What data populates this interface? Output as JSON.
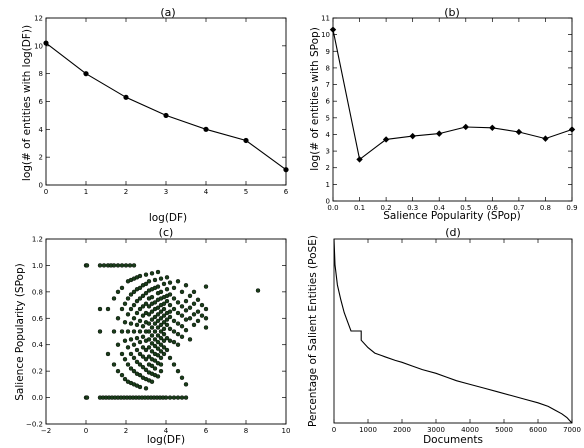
{
  "chart_data": [
    {
      "panel": "a",
      "type": "line",
      "title": "(a)",
      "xlabel": "log(DF)",
      "ylabel": "log(# of entities with log(DF))",
      "xlim": [
        0,
        6
      ],
      "ylim": [
        0,
        12
      ],
      "xticks": [
        "0",
        "1",
        "2",
        "3",
        "4",
        "5",
        "6"
      ],
      "yticks": [
        "0",
        "2",
        "4",
        "6",
        "8",
        "10",
        "12"
      ],
      "marker": "circle",
      "series": [
        {
          "x": [
            0,
            1,
            2,
            3,
            4,
            5,
            6
          ],
          "y": [
            10.2,
            8.0,
            6.3,
            5.0,
            4.0,
            3.2,
            1.1
          ]
        }
      ]
    },
    {
      "panel": "b",
      "type": "line",
      "title": "(b)",
      "xlabel": "Salience Popularity (SPop)",
      "ylabel": "log(# of entities with SPop)",
      "xlim": [
        0.0,
        0.9
      ],
      "ylim": [
        0,
        11
      ],
      "xticks": [
        "0.0",
        "0.1",
        "0.2",
        "0.3",
        "0.4",
        "0.5",
        "0.6",
        "0.7",
        "0.8",
        "0.9"
      ],
      "yticks": [
        "0",
        "1",
        "2",
        "3",
        "4",
        "5",
        "6",
        "7",
        "8",
        "9",
        "10",
        "11"
      ],
      "marker": "diamond",
      "series": [
        {
          "x": [
            0.0,
            0.1,
            0.2,
            0.3,
            0.4,
            0.5,
            0.6,
            0.7,
            0.8,
            0.9
          ],
          "y": [
            10.3,
            2.5,
            3.7,
            3.9,
            4.05,
            4.45,
            4.4,
            4.15,
            3.75,
            4.3
          ]
        }
      ]
    },
    {
      "panel": "c",
      "type": "scatter",
      "title": "(c)",
      "xlabel": "log(DF)",
      "ylabel": "Salience Popularity (SPop)",
      "xlim": [
        -2,
        10
      ],
      "ylim": [
        -0.2,
        1.2
      ],
      "xticks": [
        "−2",
        "0",
        "2",
        "4",
        "6",
        "8",
        "10"
      ],
      "yticks": [
        "−0.2",
        "0.0",
        "0.2",
        "0.4",
        "0.6",
        "0.8",
        "1.0",
        "1.2"
      ],
      "marker_color": "#1a3d1a",
      "points": [
        [
          0,
          1.0
        ],
        [
          0.05,
          1.0
        ],
        [
          0,
          0.0
        ],
        [
          0.05,
          0.0
        ],
        [
          0.7,
          1.0
        ],
        [
          0.9,
          1.0
        ],
        [
          1.1,
          1.0
        ],
        [
          1.25,
          1.0
        ],
        [
          1.4,
          1.0
        ],
        [
          1.6,
          1.0
        ],
        [
          1.8,
          1.0
        ],
        [
          2.0,
          1.0
        ],
        [
          2.2,
          1.0
        ],
        [
          2.4,
          1.0
        ],
        [
          0.7,
          0.0
        ],
        [
          0.85,
          0.0
        ],
        [
          1.0,
          0.0
        ],
        [
          1.15,
          0.0
        ],
        [
          1.3,
          0.0
        ],
        [
          1.45,
          0.0
        ],
        [
          1.6,
          0.0
        ],
        [
          1.75,
          0.0
        ],
        [
          1.9,
          0.0
        ],
        [
          2.05,
          0.0
        ],
        [
          2.2,
          0.0
        ],
        [
          2.35,
          0.0
        ],
        [
          2.5,
          0.0
        ],
        [
          2.65,
          0.0
        ],
        [
          2.8,
          0.0
        ],
        [
          2.95,
          0.0
        ],
        [
          3.1,
          0.0
        ],
        [
          3.25,
          0.0
        ],
        [
          3.4,
          0.0
        ],
        [
          3.55,
          0.0
        ],
        [
          3.7,
          0.0
        ],
        [
          3.85,
          0.0
        ],
        [
          4.0,
          0.0
        ],
        [
          4.2,
          0.0
        ],
        [
          4.4,
          0.0
        ],
        [
          4.6,
          0.0
        ],
        [
          4.8,
          0.0
        ],
        [
          5.0,
          0.0
        ],
        [
          0.7,
          0.5
        ],
        [
          0.7,
          0.67
        ],
        [
          1.1,
          0.67
        ],
        [
          1.1,
          0.33
        ],
        [
          1.4,
          0.5
        ],
        [
          1.4,
          0.25
        ],
        [
          1.4,
          0.75
        ],
        [
          1.6,
          0.4
        ],
        [
          1.6,
          0.6
        ],
        [
          1.6,
          0.8
        ],
        [
          1.6,
          0.2
        ],
        [
          1.8,
          0.83
        ],
        [
          1.8,
          0.67
        ],
        [
          1.8,
          0.5
        ],
        [
          1.8,
          0.33
        ],
        [
          1.8,
          0.17
        ],
        [
          1.95,
          0.71
        ],
        [
          1.95,
          0.43
        ],
        [
          1.95,
          0.29
        ],
        [
          1.95,
          0.14
        ],
        [
          1.95,
          0.57
        ],
        [
          2.1,
          0.88
        ],
        [
          2.1,
          0.75
        ],
        [
          2.1,
          0.63
        ],
        [
          2.1,
          0.5
        ],
        [
          2.1,
          0.38
        ],
        [
          2.1,
          0.25
        ],
        [
          2.1,
          0.12
        ],
        [
          2.25,
          0.89
        ],
        [
          2.25,
          0.78
        ],
        [
          2.25,
          0.67
        ],
        [
          2.25,
          0.56
        ],
        [
          2.25,
          0.44
        ],
        [
          2.25,
          0.33
        ],
        [
          2.25,
          0.22
        ],
        [
          2.25,
          0.11
        ],
        [
          2.4,
          0.9
        ],
        [
          2.4,
          0.8
        ],
        [
          2.4,
          0.7
        ],
        [
          2.4,
          0.6
        ],
        [
          2.4,
          0.5
        ],
        [
          2.4,
          0.4
        ],
        [
          2.4,
          0.3
        ],
        [
          2.4,
          0.2
        ],
        [
          2.4,
          0.1
        ],
        [
          2.55,
          0.91
        ],
        [
          2.55,
          0.82
        ],
        [
          2.55,
          0.73
        ],
        [
          2.55,
          0.64
        ],
        [
          2.55,
          0.55
        ],
        [
          2.55,
          0.45
        ],
        [
          2.55,
          0.36
        ],
        [
          2.55,
          0.27
        ],
        [
          2.55,
          0.18
        ],
        [
          2.55,
          0.09
        ],
        [
          2.7,
          0.92
        ],
        [
          2.7,
          0.83
        ],
        [
          2.7,
          0.75
        ],
        [
          2.7,
          0.67
        ],
        [
          2.7,
          0.58
        ],
        [
          2.7,
          0.5
        ],
        [
          2.7,
          0.42
        ],
        [
          2.7,
          0.33
        ],
        [
          2.7,
          0.25
        ],
        [
          2.7,
          0.17
        ],
        [
          2.7,
          0.08
        ],
        [
          2.85,
          0.85
        ],
        [
          2.85,
          0.77
        ],
        [
          2.85,
          0.69
        ],
        [
          2.85,
          0.62
        ],
        [
          2.85,
          0.54
        ],
        [
          2.85,
          0.46
        ],
        [
          2.85,
          0.38
        ],
        [
          2.85,
          0.31
        ],
        [
          2.85,
          0.23
        ],
        [
          2.85,
          0.15
        ],
        [
          3.0,
          0.93
        ],
        [
          3.0,
          0.86
        ],
        [
          3.0,
          0.79
        ],
        [
          3.0,
          0.71
        ],
        [
          3.0,
          0.64
        ],
        [
          3.0,
          0.57
        ],
        [
          3.0,
          0.5
        ],
        [
          3.0,
          0.43
        ],
        [
          3.0,
          0.36
        ],
        [
          3.0,
          0.29
        ],
        [
          3.0,
          0.21
        ],
        [
          3.0,
          0.14
        ],
        [
          3.0,
          0.07
        ],
        [
          3.15,
          0.88
        ],
        [
          3.15,
          0.81
        ],
        [
          3.15,
          0.75
        ],
        [
          3.15,
          0.69
        ],
        [
          3.15,
          0.63
        ],
        [
          3.15,
          0.56
        ],
        [
          3.15,
          0.5
        ],
        [
          3.15,
          0.44
        ],
        [
          3.15,
          0.38
        ],
        [
          3.15,
          0.31
        ],
        [
          3.15,
          0.25
        ],
        [
          3.15,
          0.19
        ],
        [
          3.15,
          0.13
        ],
        [
          3.3,
          0.94
        ],
        [
          3.3,
          0.82
        ],
        [
          3.3,
          0.76
        ],
        [
          3.3,
          0.71
        ],
        [
          3.3,
          0.65
        ],
        [
          3.3,
          0.59
        ],
        [
          3.3,
          0.53
        ],
        [
          3.3,
          0.47
        ],
        [
          3.3,
          0.41
        ],
        [
          3.3,
          0.35
        ],
        [
          3.3,
          0.29
        ],
        [
          3.3,
          0.24
        ],
        [
          3.3,
          0.18
        ],
        [
          3.3,
          0.12
        ],
        [
          3.45,
          0.89
        ],
        [
          3.45,
          0.83
        ],
        [
          3.45,
          0.72
        ],
        [
          3.45,
          0.67
        ],
        [
          3.45,
          0.61
        ],
        [
          3.45,
          0.56
        ],
        [
          3.45,
          0.5
        ],
        [
          3.45,
          0.44
        ],
        [
          3.45,
          0.39
        ],
        [
          3.45,
          0.33
        ],
        [
          3.45,
          0.28
        ],
        [
          3.45,
          0.22
        ],
        [
          3.45,
          0.17
        ],
        [
          3.6,
          0.95
        ],
        [
          3.6,
          0.84
        ],
        [
          3.6,
          0.79
        ],
        [
          3.6,
          0.74
        ],
        [
          3.6,
          0.68
        ],
        [
          3.6,
          0.63
        ],
        [
          3.6,
          0.58
        ],
        [
          3.6,
          0.53
        ],
        [
          3.6,
          0.47
        ],
        [
          3.6,
          0.42
        ],
        [
          3.6,
          0.37
        ],
        [
          3.6,
          0.32
        ],
        [
          3.6,
          0.26
        ],
        [
          3.6,
          0.16
        ],
        [
          3.75,
          0.9
        ],
        [
          3.75,
          0.8
        ],
        [
          3.75,
          0.75
        ],
        [
          3.75,
          0.7
        ],
        [
          3.75,
          0.65
        ],
        [
          3.75,
          0.6
        ],
        [
          3.75,
          0.55
        ],
        [
          3.75,
          0.5
        ],
        [
          3.75,
          0.45
        ],
        [
          3.75,
          0.4
        ],
        [
          3.75,
          0.35
        ],
        [
          3.75,
          0.3
        ],
        [
          3.75,
          0.25
        ],
        [
          3.75,
          0.2
        ],
        [
          3.9,
          0.86
        ],
        [
          3.9,
          0.76
        ],
        [
          3.9,
          0.71
        ],
        [
          3.9,
          0.67
        ],
        [
          3.9,
          0.62
        ],
        [
          3.9,
          0.57
        ],
        [
          3.9,
          0.52
        ],
        [
          3.9,
          0.48
        ],
        [
          3.9,
          0.43
        ],
        [
          3.9,
          0.38
        ],
        [
          3.9,
          0.33
        ],
        [
          4.05,
          0.91
        ],
        [
          4.05,
          0.82
        ],
        [
          4.05,
          0.77
        ],
        [
          4.05,
          0.73
        ],
        [
          4.05,
          0.64
        ],
        [
          4.05,
          0.59
        ],
        [
          4.05,
          0.55
        ],
        [
          4.05,
          0.45
        ],
        [
          4.05,
          0.36
        ],
        [
          4.2,
          0.87
        ],
        [
          4.2,
          0.78
        ],
        [
          4.2,
          0.7
        ],
        [
          4.2,
          0.65
        ],
        [
          4.2,
          0.61
        ],
        [
          4.2,
          0.52
        ],
        [
          4.2,
          0.43
        ],
        [
          4.2,
          0.3
        ],
        [
          4.4,
          0.83
        ],
        [
          4.4,
          0.75
        ],
        [
          4.4,
          0.67
        ],
        [
          4.4,
          0.58
        ],
        [
          4.4,
          0.5
        ],
        [
          4.4,
          0.42
        ],
        [
          4.4,
          0.25
        ],
        [
          4.6,
          0.88
        ],
        [
          4.6,
          0.72
        ],
        [
          4.6,
          0.64
        ],
        [
          4.6,
          0.56
        ],
        [
          4.6,
          0.48
        ],
        [
          4.6,
          0.4
        ],
        [
          4.6,
          0.2
        ],
        [
          4.8,
          0.8
        ],
        [
          4.8,
          0.69
        ],
        [
          4.8,
          0.62
        ],
        [
          4.8,
          0.54
        ],
        [
          4.8,
          0.46
        ],
        [
          4.8,
          0.15
        ],
        [
          5.0,
          0.85
        ],
        [
          5.0,
          0.73
        ],
        [
          5.0,
          0.66
        ],
        [
          5.0,
          0.59
        ],
        [
          5.0,
          0.51
        ],
        [
          5.0,
          0.1
        ],
        [
          5.2,
          0.77
        ],
        [
          5.2,
          0.68
        ],
        [
          5.2,
          0.6
        ],
        [
          5.2,
          0.44
        ],
        [
          5.4,
          0.8
        ],
        [
          5.4,
          0.71
        ],
        [
          5.4,
          0.63
        ],
        [
          5.4,
          0.55
        ],
        [
          5.6,
          0.74
        ],
        [
          5.6,
          0.65
        ],
        [
          5.6,
          0.58
        ],
        [
          5.8,
          0.7
        ],
        [
          5.8,
          0.62
        ],
        [
          6.0,
          0.84
        ],
        [
          6.0,
          0.67
        ],
        [
          6.0,
          0.6
        ],
        [
          6.0,
          0.53
        ],
        [
          8.6,
          0.81
        ]
      ]
    },
    {
      "panel": "d",
      "type": "line",
      "title": "(d)",
      "xlabel": "Documents",
      "ylabel": "Percentage of Salient Entities (PoSE)",
      "xlim": [
        0,
        7000
      ],
      "ylim": [
        0.0,
        1.0
      ],
      "xticks": [
        "0",
        "1000",
        "2000",
        "3000",
        "4000",
        "5000",
        "6000",
        "7000"
      ],
      "yticks": [],
      "series": [
        {
          "x": [
            0,
            30,
            100,
            200,
            300,
            400,
            500,
            500,
            800,
            800,
            1000,
            1200,
            1500,
            1800,
            2000,
            2300,
            2600,
            3000,
            3300,
            3600,
            4000,
            4400,
            4800,
            5200,
            5600,
            6000,
            6300,
            6500,
            6700,
            6850,
            6950,
            7000
          ],
          "y": [
            1.0,
            0.86,
            0.75,
            0.67,
            0.6,
            0.55,
            0.5,
            0.5,
            0.5,
            0.45,
            0.41,
            0.38,
            0.36,
            0.34,
            0.33,
            0.31,
            0.29,
            0.27,
            0.25,
            0.23,
            0.21,
            0.19,
            0.17,
            0.15,
            0.13,
            0.11,
            0.09,
            0.07,
            0.05,
            0.03,
            0.01,
            0.0
          ]
        }
      ]
    }
  ]
}
